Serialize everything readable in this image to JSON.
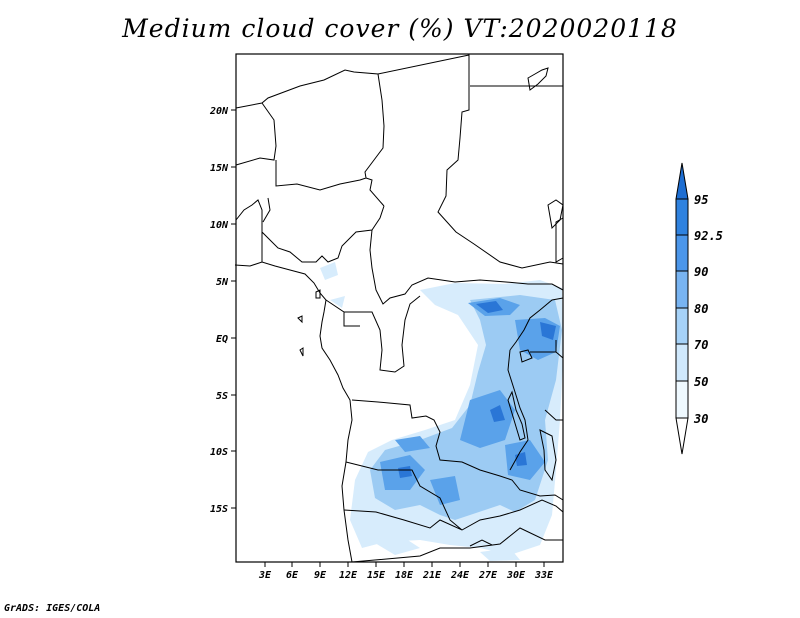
{
  "title": "Medium cloud cover (%) VT:2020020118",
  "credit": "GrADS: IGES/COLA",
  "map": {
    "lat_labels": [
      "20N",
      "15N",
      "10N",
      "5N",
      "EQ",
      "5S",
      "10S",
      "15S"
    ],
    "lon_labels": [
      "3E",
      "6E",
      "9E",
      "12E",
      "15E",
      "18E",
      "21E",
      "24E",
      "27E",
      "30E",
      "33E"
    ]
  },
  "colorbar": {
    "labels": [
      "95",
      "92.5",
      "90",
      "80",
      "70",
      "50",
      "30"
    ],
    "colors": [
      "#1e6ed2",
      "#2f82df",
      "#4b96ea",
      "#78b4f2",
      "#a6d2f8",
      "#cfe8fc",
      "#eff9ff"
    ]
  },
  "field_colors": {
    "light": "#d7ecfc",
    "mid": "#9ccbf3",
    "strong": "#5aa2ea",
    "deep": "#2a76d6"
  }
}
